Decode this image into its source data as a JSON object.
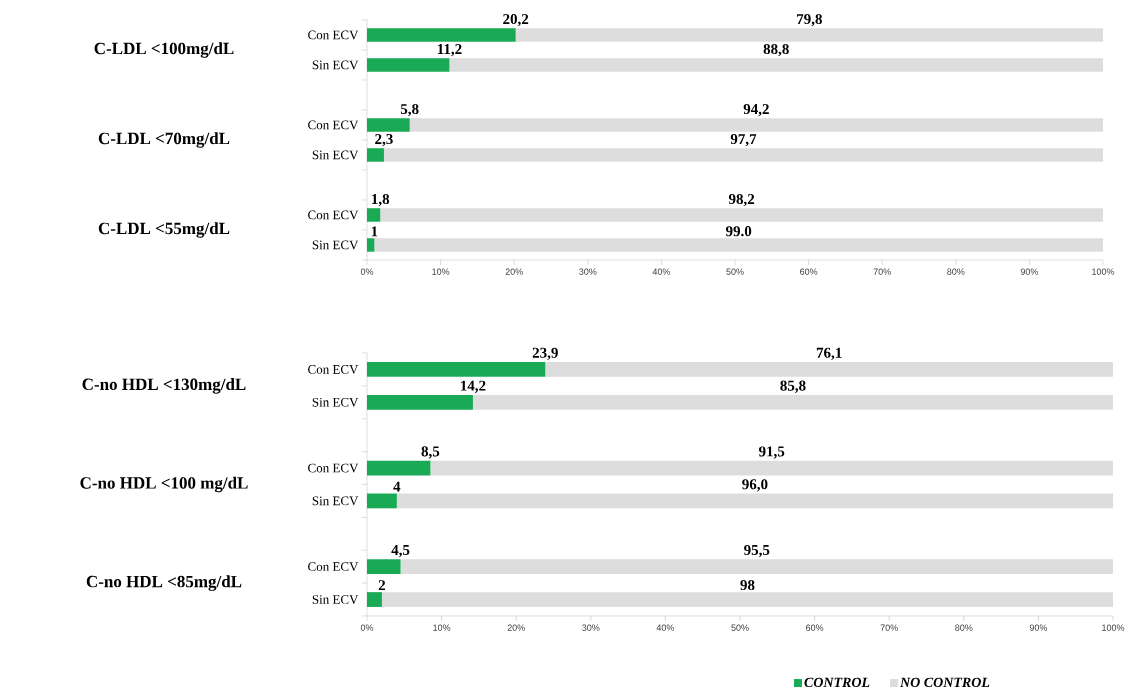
{
  "chart_data": [
    {
      "type": "bar",
      "orientation": "horizontal",
      "stacked": true,
      "legend": false,
      "categories": [
        "Con ECV",
        "Sin ECV",
        "Con ECV",
        "Sin ECV",
        "Con ECV",
        "Sin ECV"
      ],
      "annotations": [
        "C-LDL <100mg/dL",
        "C-LDL <70mg/dL",
        "C-LDL <55mg/dL"
      ],
      "series": [
        {
          "color": "#1aaa55",
          "values": [
            20.2,
            11.2,
            5.8,
            2.3,
            1.8,
            1
          ],
          "value_labels": [
            "20,2",
            "11,2",
            "5,8",
            "2,3",
            "1,8",
            "1"
          ]
        },
        {
          "color": "#dddddd",
          "values": [
            79.8,
            88.8,
            94.2,
            97.7,
            98.2,
            99.0
          ],
          "value_labels": [
            "79,8",
            "88,8",
            "94,2",
            "97,7",
            "98,2",
            "99.0"
          ]
        }
      ],
      "xlim": [
        0,
        100
      ],
      "xticks": [
        {
          "value": 0,
          "label": "0%"
        },
        {
          "value": 10,
          "label": "10%"
        },
        {
          "value": 20,
          "label": "20%"
        },
        {
          "value": 30,
          "label": "30%"
        },
        {
          "value": 40,
          "label": "40%"
        },
        {
          "value": 50,
          "label": "50%"
        },
        {
          "value": 60,
          "label": "60%"
        },
        {
          "value": 70,
          "label": "70%"
        },
        {
          "value": 80,
          "label": "80%"
        },
        {
          "value": 90,
          "label": "90%"
        },
        {
          "value": 100,
          "label": "100%"
        }
      ]
    },
    {
      "type": "bar",
      "orientation": "horizontal",
      "stacked": true,
      "legend": "bottom",
      "categories": [
        "Con ECV",
        "Sin ECV",
        "Con ECV",
        "Sin ECV",
        "Con ECV",
        "Sin ECV"
      ],
      "annotations": [
        "C-no HDL <130mg/dL",
        "C-no HDL <100 mg/dL",
        "C-no HDL <85mg/dL"
      ],
      "series": [
        {
          "name": "CONTROL",
          "color": "#1aaa55",
          "values": [
            23.9,
            14.2,
            8.5,
            4,
            4.5,
            2
          ],
          "value_labels": [
            "23,9",
            "14,2",
            "8,5",
            "4",
            "4,5",
            "2"
          ]
        },
        {
          "name": "NO CONTROL",
          "color": "#dddddd",
          "values": [
            76.1,
            85.8,
            91.5,
            96,
            95.5,
            98
          ],
          "value_labels": [
            "76,1",
            "85,8",
            "91,5",
            "96,0",
            "95,5",
            "98"
          ]
        }
      ],
      "xlim": [
        0,
        100
      ],
      "xticks": [
        {
          "value": 0,
          "label": "0%"
        },
        {
          "value": 10,
          "label": "10%"
        },
        {
          "value": 20,
          "label": "20%"
        },
        {
          "value": 30,
          "label": "30%"
        },
        {
          "value": 40,
          "label": "40%"
        },
        {
          "value": 50,
          "label": "50%"
        },
        {
          "value": 60,
          "label": "60%"
        },
        {
          "value": 70,
          "label": "70%"
        },
        {
          "value": 80,
          "label": "80%"
        },
        {
          "value": 90,
          "label": "90%"
        },
        {
          "value": 100,
          "label": "100%"
        }
      ]
    }
  ]
}
